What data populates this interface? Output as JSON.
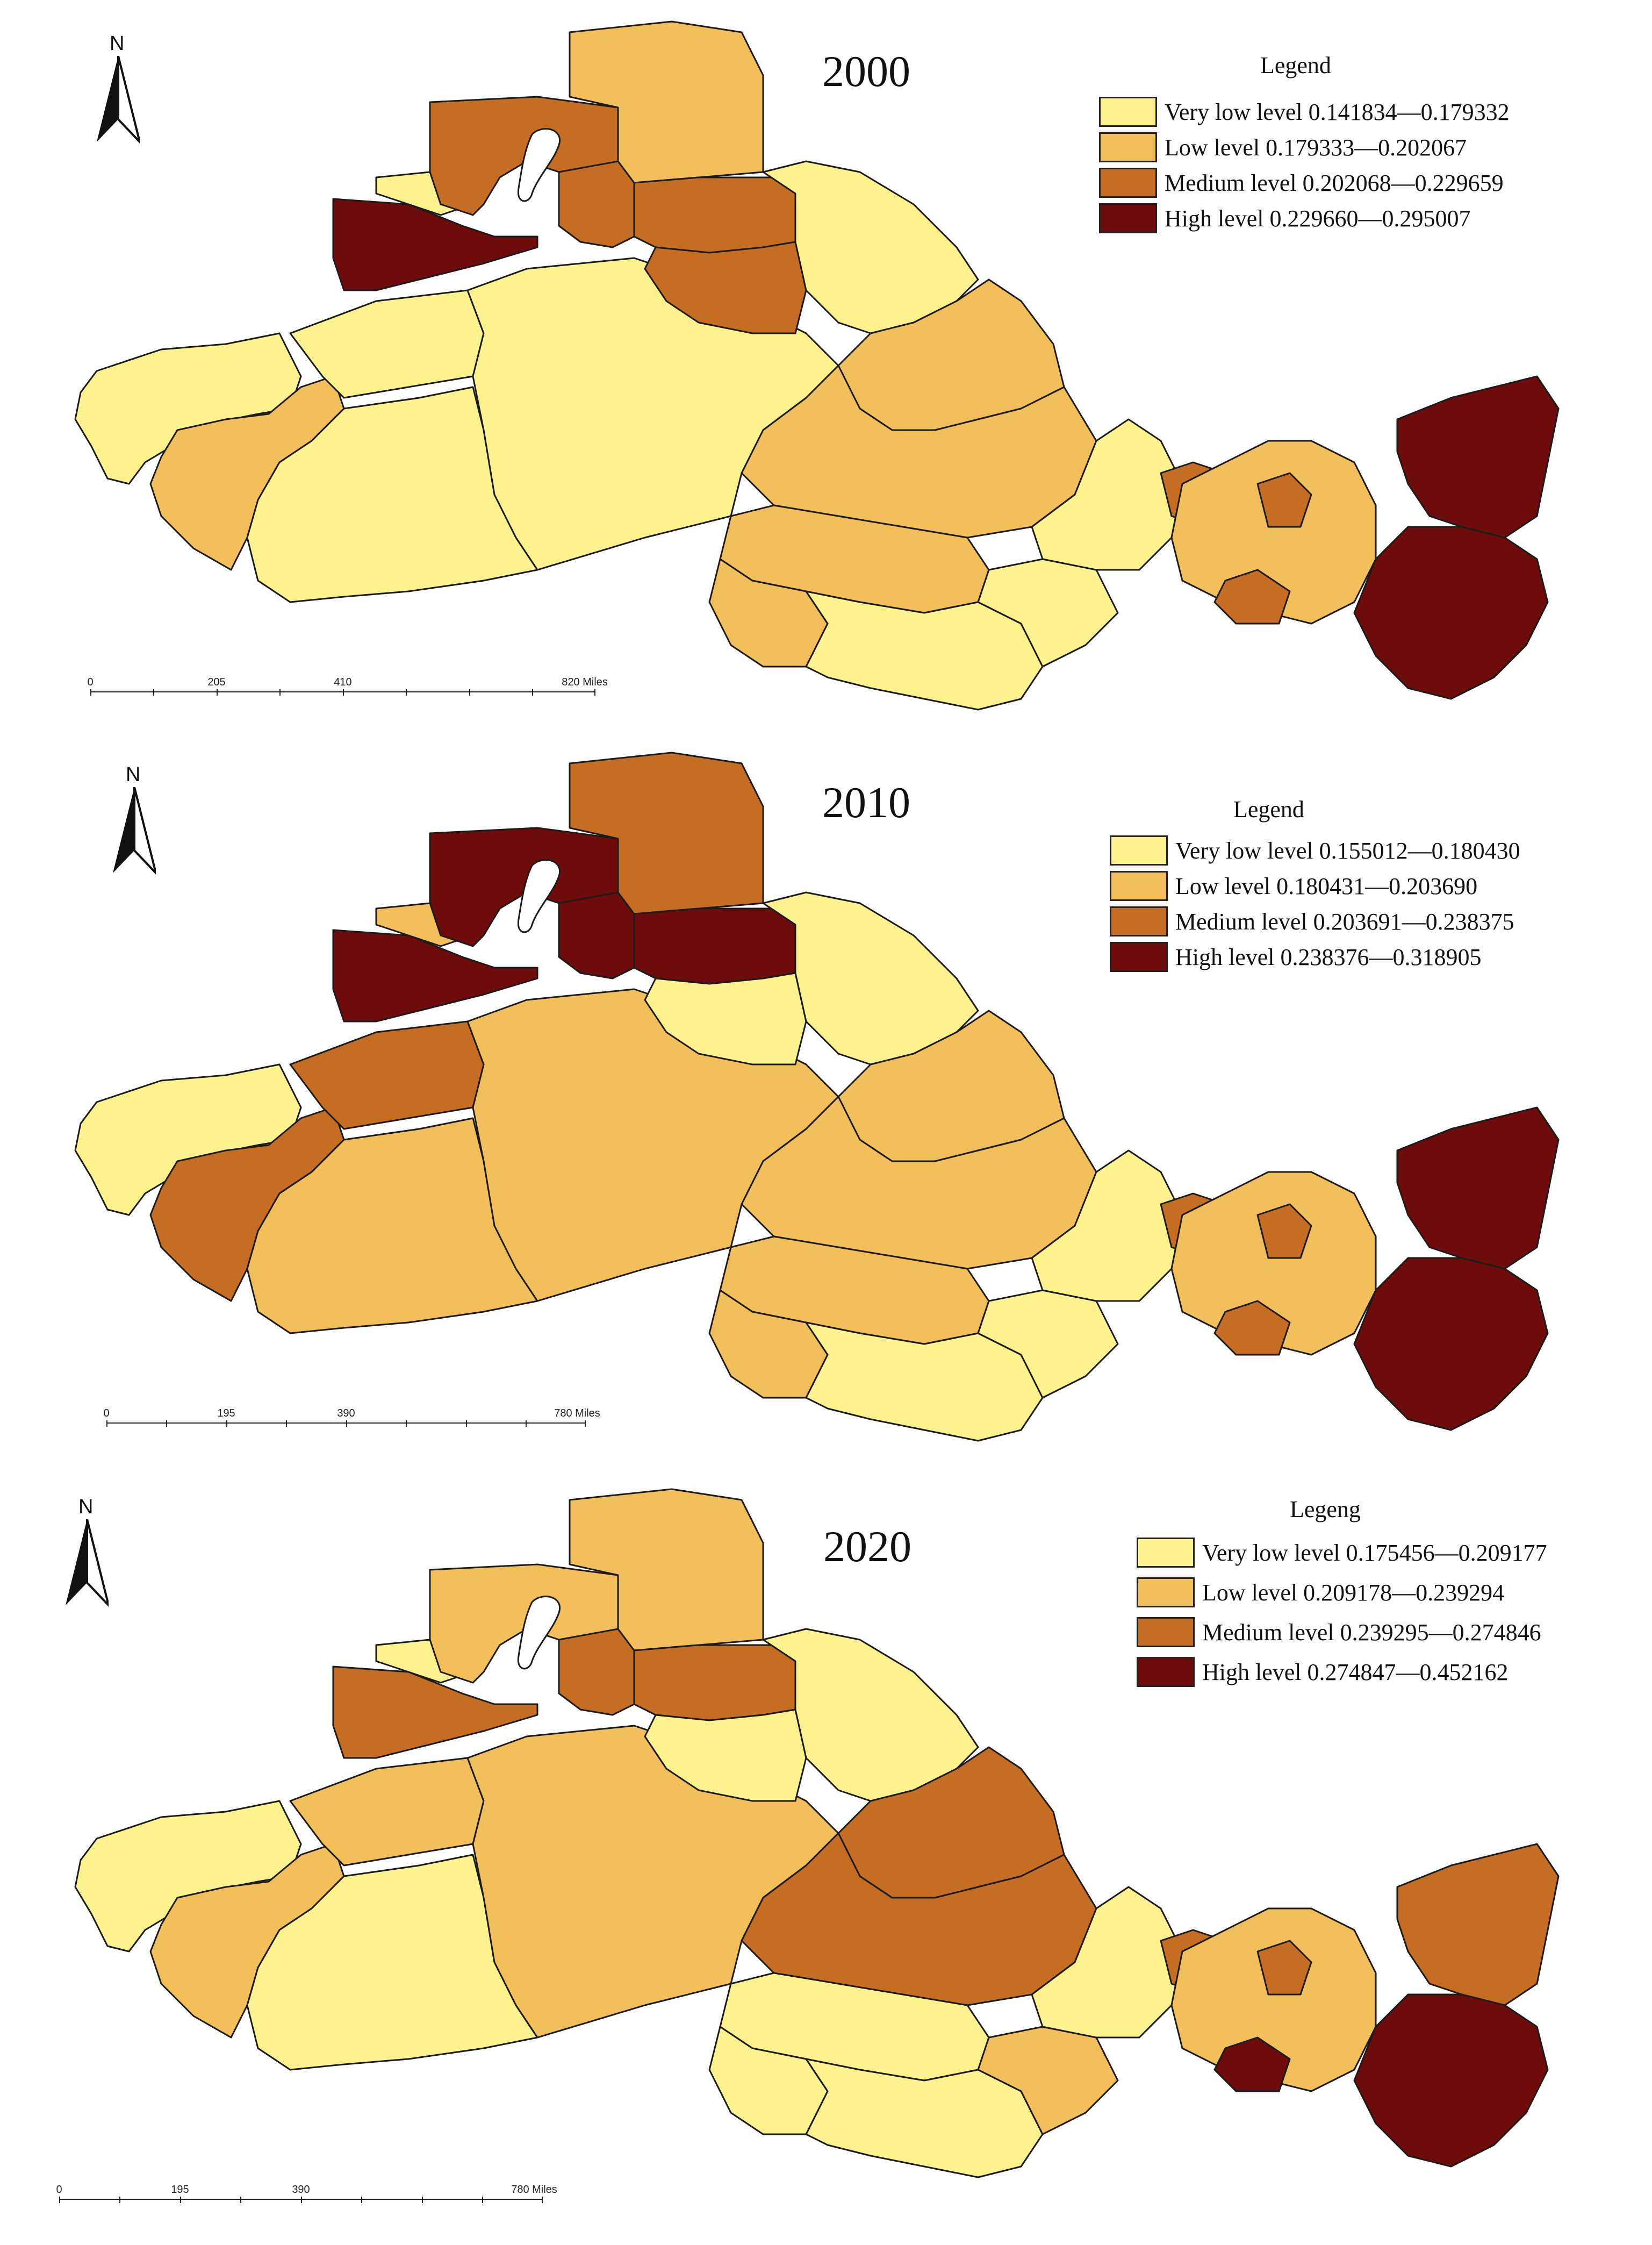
{
  "colors": {
    "very_low": "#FEF28E",
    "low": "#F3BF5A",
    "medium": "#C46D23",
    "high": "#6E0B0B",
    "border": "#1b1b1b"
  },
  "north_label": "N",
  "panels": [
    {
      "year": "2000",
      "legend_title": "Legend",
      "legend": [
        {
          "class": "very_low",
          "label": "Very low level 0.141834—0.179332"
        },
        {
          "class": "low",
          "label": "Low level 0.179333—0.202067"
        },
        {
          "class": "medium",
          "label": "Medium level 0.202068—0.229659"
        },
        {
          "class": "high",
          "label": "High level 0.229660—0.295007"
        }
      ],
      "scale_labels": [
        "0",
        "205",
        "410",
        "820 Miles"
      ],
      "regions": {
        "far_west": "very_low",
        "sw_strip": "low",
        "w_central": "very_low",
        "s_west": "very_low",
        "big_center": "very_low",
        "nw_maroon": "high",
        "nw_small": "very_low",
        "n_ring": "medium",
        "n_lake_east": "medium",
        "n_top": "low",
        "n_east": "medium",
        "n_mid": "medium",
        "ne_big": "very_low",
        "e_low": "low",
        "e_upper": "low",
        "c_south_band": "low",
        "s_belt": "very_low",
        "s_basin": "low",
        "s_east_pocket": "very_low",
        "east_yellow": "very_low",
        "east_medium_a": "medium",
        "east_medium_b": "medium",
        "east_low_mix": "low",
        "east_far": "high",
        "east_lower": "high",
        "east_small_med": "medium"
      }
    },
    {
      "year": "2010",
      "legend_title": "Legend",
      "legend": [
        {
          "class": "very_low",
          "label": "Very low level 0.155012—0.180430"
        },
        {
          "class": "low",
          "label": "Low level 0.180431—0.203690"
        },
        {
          "class": "medium",
          "label": "Medium level 0.203691—0.238375"
        },
        {
          "class": "high",
          "label": "High level 0.238376—0.318905"
        }
      ],
      "scale_labels": [
        "0",
        "195",
        "390",
        "780 Miles"
      ],
      "regions": {
        "far_west": "very_low",
        "sw_strip": "medium",
        "w_central": "medium",
        "s_west": "low",
        "big_center": "low",
        "nw_maroon": "high",
        "nw_small": "low",
        "n_ring": "high",
        "n_lake_east": "high",
        "n_top": "medium",
        "n_east": "high",
        "n_mid": "very_low",
        "ne_big": "very_low",
        "e_low": "low",
        "e_upper": "low",
        "c_south_band": "low",
        "s_belt": "very_low",
        "s_basin": "low",
        "s_east_pocket": "very_low",
        "east_yellow": "very_low",
        "east_medium_a": "medium",
        "east_medium_b": "medium",
        "east_low_mix": "low",
        "east_far": "high",
        "east_lower": "high",
        "east_small_med": "medium"
      }
    },
    {
      "year": "2020",
      "legend_title": "Legeng",
      "legend": [
        {
          "class": "very_low",
          "label": "Very low level 0.175456—0.209177"
        },
        {
          "class": "low",
          "label": "Low level 0.209178—0.239294"
        },
        {
          "class": "medium",
          "label": "Medium level 0.239295—0.274846"
        },
        {
          "class": "high",
          "label": "High level 0.274847—0.452162"
        }
      ],
      "scale_labels": [
        "0",
        "195",
        "390",
        "780 Miles"
      ],
      "regions": {
        "far_west": "very_low",
        "sw_strip": "low",
        "w_central": "low",
        "s_west": "very_low",
        "big_center": "low",
        "nw_maroon": "medium",
        "nw_small": "very_low",
        "n_ring": "low",
        "n_lake_east": "medium",
        "n_top": "low",
        "n_east": "medium",
        "n_mid": "very_low",
        "ne_big": "very_low",
        "e_low": "medium",
        "e_upper": "medium",
        "c_south_band": "very_low",
        "s_belt": "very_low",
        "s_basin": "very_low",
        "s_east_pocket": "low",
        "east_yellow": "very_low",
        "east_medium_a": "medium",
        "east_medium_b": "medium",
        "east_low_mix": "low",
        "east_far": "medium",
        "east_lower": "high",
        "east_small_med": "high"
      }
    }
  ]
}
